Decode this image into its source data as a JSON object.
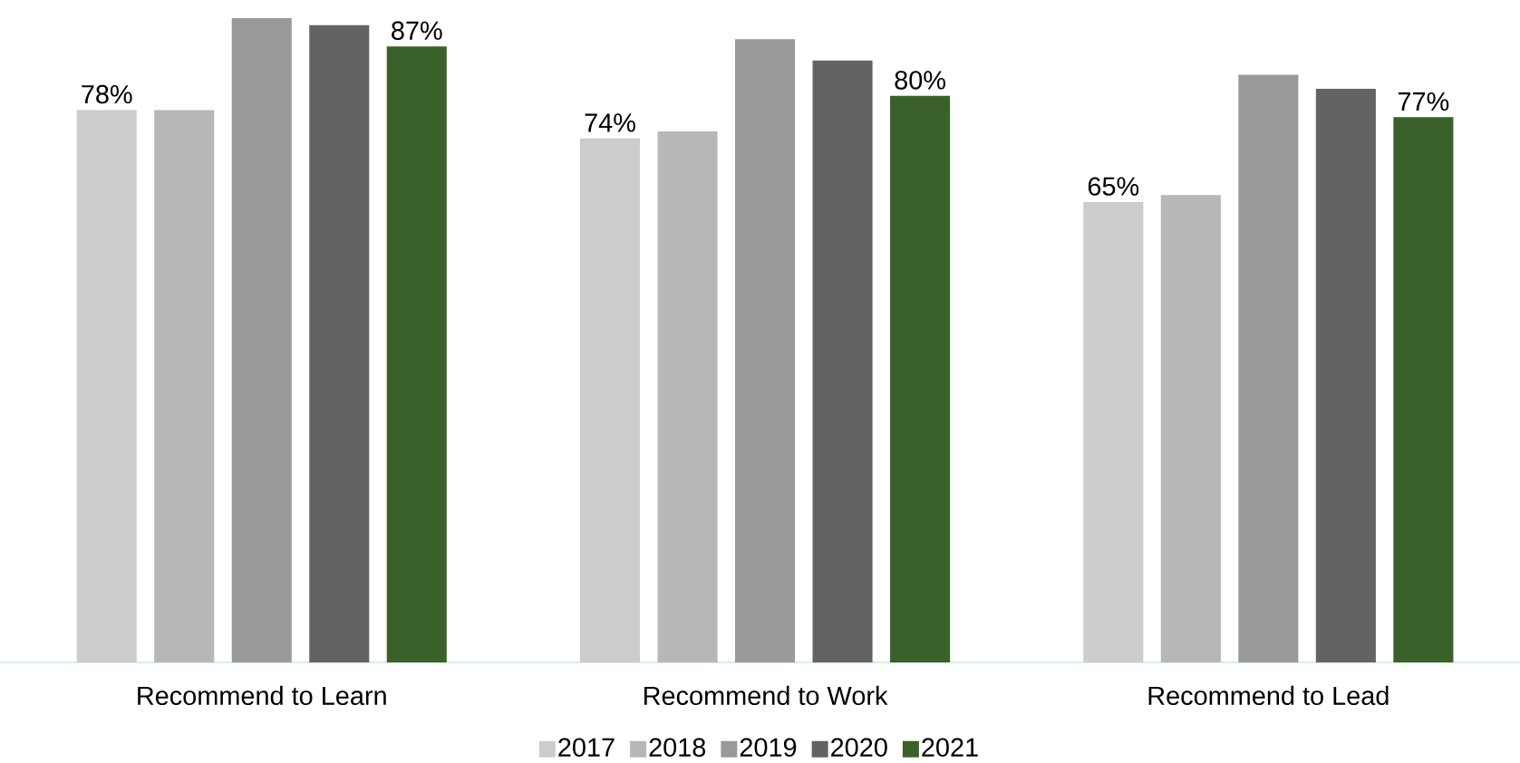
{
  "chart_data": {
    "type": "bar",
    "categories": [
      "Recommend to Learn",
      "Recommend to Work",
      "Recommend to Lead"
    ],
    "legend": "bottom",
    "series": [
      {
        "name": "2017",
        "color": "#cccccc",
        "values": [
          78,
          74,
          65
        ],
        "value_labels": [
          "78%",
          "74%",
          "65%"
        ]
      },
      {
        "name": "2018",
        "color": "#b7b7b7",
        "values": [
          78,
          75,
          66
        ]
      },
      {
        "name": "2019",
        "color": "#999999",
        "values": [
          91,
          88,
          83
        ]
      },
      {
        "name": "2020",
        "color": "#636363",
        "values": [
          90,
          85,
          81
        ]
      },
      {
        "name": "2021",
        "color": "#3a6129",
        "values": [
          87,
          80,
          77
        ],
        "value_labels": [
          "87%",
          "80%",
          "77%"
        ]
      }
    ]
  }
}
